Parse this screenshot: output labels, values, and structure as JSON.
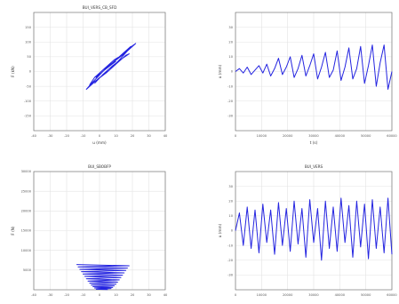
{
  "accent_color": "#2424e0",
  "chart_data": [
    {
      "type": "line",
      "title": "BUI_VERS_CB_SFD",
      "xlabel": "u (mm)",
      "ylabel": "F (kN)",
      "xlim": [
        -40,
        40
      ],
      "ylim": [
        -200,
        200
      ],
      "xticks": [
        -40,
        -30,
        -20,
        -10,
        0,
        10,
        20,
        30,
        40
      ],
      "yticks": [
        -150,
        -100,
        -50,
        0,
        50,
        100,
        150
      ],
      "grid": true,
      "series": [
        {
          "color": "#2424e0",
          "x": [
            -3,
            2,
            8,
            14,
            18,
            16,
            10,
            4,
            -2,
            -6,
            -3,
            3,
            9,
            15,
            17,
            13,
            6,
            -1,
            -5,
            -8,
            -4,
            2,
            8,
            13,
            18,
            20,
            15,
            8,
            2,
            -3,
            1,
            6,
            12,
            17,
            19,
            14,
            8,
            3,
            -1,
            3,
            9,
            14,
            20,
            22,
            17,
            10,
            4,
            0,
            5,
            11,
            16,
            18,
            13,
            7,
            2,
            -2,
            3,
            10
          ],
          "y": [
            -40,
            -10,
            20,
            45,
            60,
            55,
            25,
            -5,
            -30,
            -45,
            -20,
            10,
            40,
            60,
            70,
            45,
            5,
            -25,
            -45,
            -60,
            -35,
            0,
            30,
            55,
            75,
            85,
            60,
            30,
            5,
            -20,
            -5,
            20,
            50,
            75,
            85,
            60,
            30,
            5,
            -15,
            5,
            35,
            60,
            85,
            95,
            75,
            40,
            10,
            -10,
            15,
            45,
            70,
            80,
            55,
            25,
            0,
            -20,
            5,
            35
          ]
        }
      ]
    },
    {
      "type": "line",
      "title": "",
      "xlabel": "t (s)",
      "ylabel": "u (mm)",
      "xlim": [
        0,
        60000
      ],
      "ylim": [
        -40,
        40
      ],
      "xticks": [
        0,
        10000,
        20000,
        30000,
        40000,
        50000,
        60000
      ],
      "yticks": [
        -30,
        -20,
        -10,
        0,
        10,
        20,
        30
      ],
      "grid": true,
      "series": [
        {
          "color": "#2424e0",
          "x": [
            0,
            1500,
            3000,
            4500,
            6000,
            7500,
            9000,
            10500,
            12000,
            13500,
            15000,
            16500,
            18000,
            19500,
            21000,
            22500,
            24000,
            25500,
            27000,
            28500,
            30000,
            31500,
            33000,
            34500,
            36000,
            37500,
            39000,
            40500,
            42000,
            43500,
            45000,
            46500,
            48000,
            49500,
            51000,
            52500,
            54000,
            55500,
            57000,
            58500,
            60000
          ],
          "y": [
            0,
            2,
            -1,
            3,
            -2,
            1,
            4,
            -1,
            5,
            -3,
            2,
            9,
            -2,
            3,
            10,
            -4,
            2,
            11,
            -3,
            4,
            12,
            -5,
            3,
            13,
            -4,
            1,
            14,
            -6,
            3,
            16,
            -5,
            2,
            17,
            -8,
            4,
            18,
            -10,
            6,
            18,
            -12,
            0
          ]
        }
      ]
    },
    {
      "type": "line",
      "title": "BUI_SBOBFP",
      "xlabel": "",
      "ylabel": "F (N)",
      "xlim": [
        -40,
        40
      ],
      "ylim": [
        0,
        30000
      ],
      "xticks": [
        -40,
        -30,
        -20,
        -10,
        0,
        10,
        20,
        30,
        40
      ],
      "yticks": [
        5000,
        10000,
        15000,
        20000,
        25000,
        30000
      ],
      "grid": true,
      "series": [
        {
          "color": "#2424e0",
          "x": [
            -14,
            18,
            -13,
            17,
            -12,
            16,
            -11,
            15,
            -10,
            14,
            -9,
            13,
            -8,
            12,
            -7,
            11,
            -6,
            10,
            -5,
            9,
            -4,
            8,
            -3,
            7,
            -2,
            5
          ],
          "y": [
            6400,
            6100,
            5800,
            5500,
            5200,
            4900,
            4600,
            4300,
            4000,
            3700,
            3400,
            3100,
            2800,
            2500,
            2200,
            1950,
            1700,
            1450,
            1200,
            1000,
            800,
            600,
            450,
            300,
            150,
            50
          ]
        }
      ]
    },
    {
      "type": "line",
      "title": "BUI_VERS",
      "xlabel": "",
      "ylabel": "u (mm)",
      "xlim": [
        0,
        60000
      ],
      "ylim": [
        -40,
        40
      ],
      "xticks": [
        0,
        10000,
        20000,
        30000,
        40000,
        50000,
        60000
      ],
      "yticks": [
        -30,
        -20,
        -10,
        0,
        10,
        20,
        30
      ],
      "grid": true,
      "series": [
        {
          "color": "#2424e0",
          "x": [
            0,
            1500,
            3000,
            4500,
            6000,
            7500,
            9000,
            10500,
            12000,
            13500,
            15000,
            16500,
            18000,
            19500,
            21000,
            22500,
            24000,
            25500,
            27000,
            28500,
            30000,
            31500,
            33000,
            34500,
            36000,
            37500,
            39000,
            40500,
            42000,
            43500,
            45000,
            46500,
            48000,
            49500,
            51000,
            52500,
            54000,
            55500,
            57000,
            58500,
            60000
          ],
          "y": [
            0,
            12,
            -10,
            16,
            -12,
            14,
            -15,
            18,
            -8,
            14,
            -16,
            19,
            -10,
            15,
            -14,
            20,
            -9,
            15,
            -18,
            21,
            -8,
            15,
            -20,
            20,
            -12,
            16,
            -14,
            22,
            -8,
            17,
            -18,
            20,
            -11,
            18,
            -19,
            21,
            -12,
            16,
            -15,
            22,
            -16
          ]
        }
      ]
    }
  ]
}
